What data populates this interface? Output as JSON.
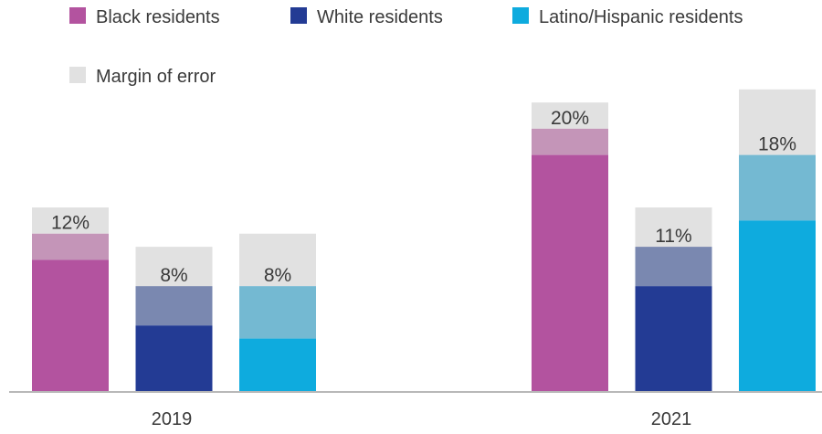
{
  "chart_data": {
    "type": "bar",
    "categories": [
      "2019",
      "2021"
    ],
    "series": [
      {
        "name": "Black residents",
        "values": [
          12,
          20
        ],
        "margin_of_error": [
          2,
          2
        ],
        "color": "#b3539f",
        "moe_light": "#c495b8"
      },
      {
        "name": "White residents",
        "values": [
          8,
          11
        ],
        "margin_of_error": [
          3,
          3
        ],
        "color": "#233b94",
        "moe_light": "#7a88b0"
      },
      {
        "name": "Latino/Hispanic residents",
        "values": [
          8,
          18
        ],
        "margin_of_error": [
          4,
          5
        ],
        "color": "#0eabde",
        "moe_light": "#74b9d2"
      }
    ],
    "legend_extra": {
      "name": "Margin of error",
      "color": "#e1e1e1"
    },
    "legend_position": "top-left",
    "value_suffix": "%",
    "ylim": [
      0,
      22.5
    ],
    "grid": false,
    "axis_color": "#a0a0a0"
  }
}
